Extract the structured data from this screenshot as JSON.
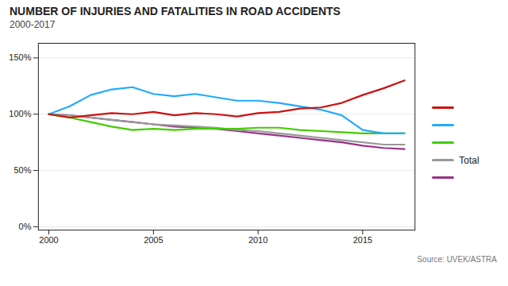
{
  "chart_data": {
    "type": "line",
    "title": "NUMBER OF INJURIES AND FATALITIES IN ROAD ACCIDENTS",
    "subtitle": "2000-2017",
    "source": "Source: UVEK/ASTRA",
    "x": [
      2000,
      2001,
      2002,
      2003,
      2004,
      2005,
      2006,
      2007,
      2008,
      2009,
      2010,
      2011,
      2012,
      2013,
      2014,
      2015,
      2016,
      2017
    ],
    "series": [
      {
        "color": "#993388",
        "values": [
          100,
          99,
          97,
          95,
          93,
          91,
          89,
          88,
          87,
          85,
          83,
          81,
          79,
          77,
          75,
          72,
          70,
          69
        ]
      },
      {
        "name": "Total",
        "color": "#999999",
        "values": [
          100,
          99,
          97,
          95,
          93,
          91,
          90,
          89,
          88,
          86,
          85,
          83,
          81,
          79,
          77,
          75,
          73,
          73
        ]
      },
      {
        "color": "#44cc00",
        "values": [
          100,
          97,
          93,
          89,
          86,
          87,
          86,
          87,
          87,
          87,
          88,
          88,
          86,
          85,
          84,
          83,
          83,
          83
        ]
      },
      {
        "color": "#22aaff",
        "values": [
          100,
          107,
          117,
          122,
          124,
          118,
          116,
          118,
          115,
          112,
          112,
          110,
          107,
          104,
          99,
          86,
          83,
          83
        ]
      },
      {
        "color": "#cc1111",
        "values": [
          100,
          97,
          99,
          101,
          100,
          102,
          99,
          101,
          100,
          98,
          101,
          102,
          105,
          106,
          110,
          117,
          123,
          130
        ]
      }
    ],
    "xlim": [
      1999.5,
      2017.5
    ],
    "xticks": [
      2000,
      2005,
      2010,
      2015
    ],
    "ylim": [
      -3,
      163
    ],
    "yticks": [
      {
        "value": 0,
        "label": "0%"
      },
      {
        "value": 50,
        "label": "50%"
      },
      {
        "value": 100,
        "label": "100%"
      },
      {
        "value": 150,
        "label": "150%"
      }
    ],
    "grid": true,
    "legend": "right"
  }
}
